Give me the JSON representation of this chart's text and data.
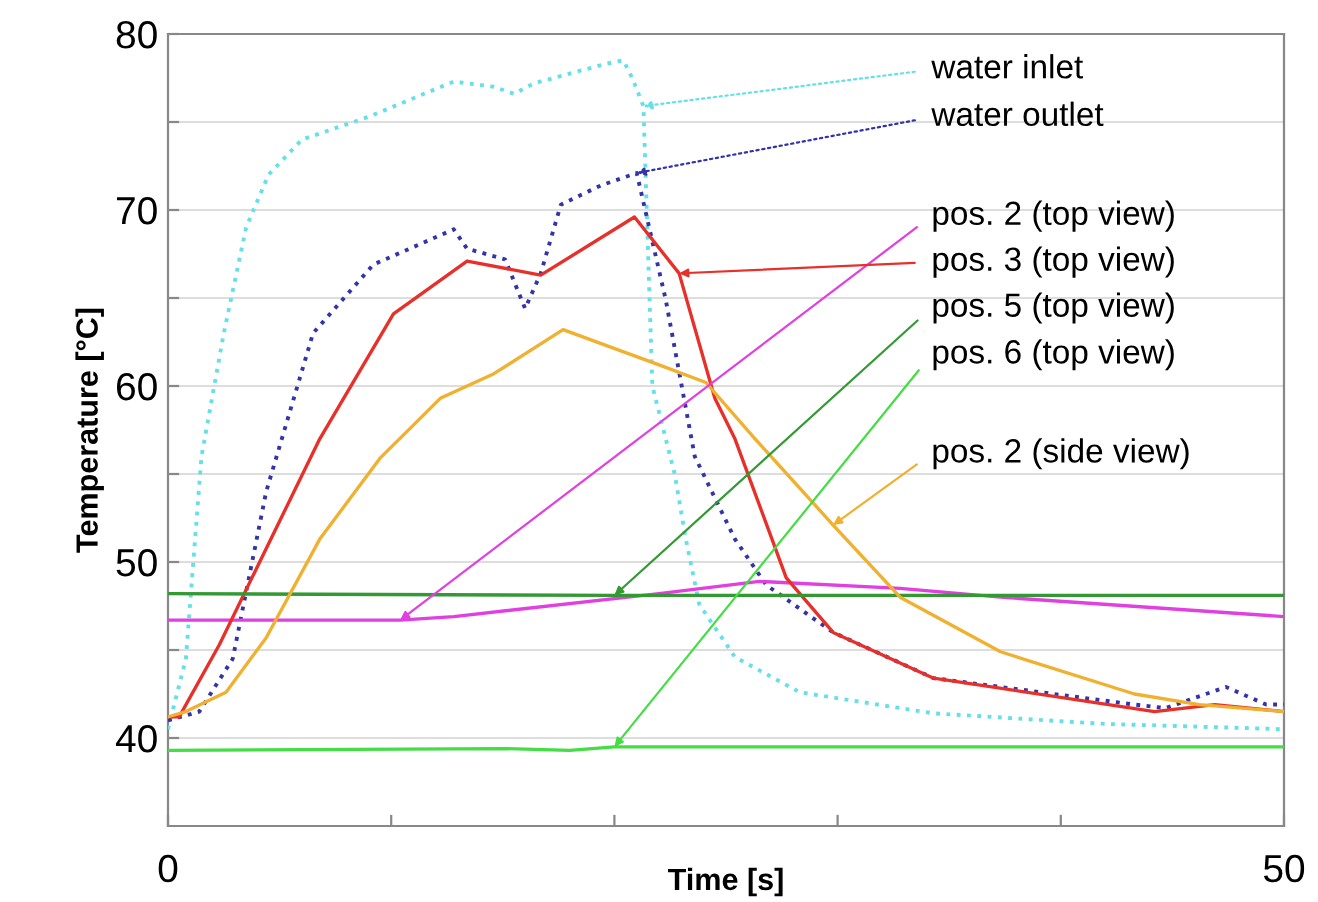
{
  "chart_data": {
    "type": "line",
    "xlabel": "Time [s]",
    "ylabel": "Temperature [°C]",
    "xlim": [
      0,
      50
    ],
    "ylim": [
      35,
      80
    ],
    "xticks": [
      0,
      {
        "value": 10,
        "label": null
      },
      {
        "value": 20,
        "label": null
      },
      {
        "value": 30,
        "label": null
      },
      {
        "value": 40,
        "label": null
      },
      50
    ],
    "yticks": [
      40,
      {
        "value": 45,
        "label": null
      },
      50,
      {
        "value": 55,
        "label": null
      },
      60,
      {
        "value": 65,
        "label": null
      },
      70,
      {
        "value": 75,
        "label": null
      },
      80
    ],
    "grid": "y",
    "legend": false,
    "marker": "none",
    "series": [
      {
        "color": "#66e0e8",
        "line_style": "dotted",
        "x": [
          0,
          0.8,
          1.5,
          2.5,
          3.5,
          4.5,
          6,
          9,
          12.8,
          14.6,
          15.5,
          16.4,
          19.6,
          20.4,
          20.8,
          21.3,
          21.7,
          22.7,
          23.2,
          23.8,
          25.4,
          28.3,
          34.3,
          42,
          50
        ],
        "values": [
          40.5,
          44.5,
          56,
          63,
          69,
          72,
          74,
          75.3,
          77.3,
          77,
          76.6,
          77.2,
          78.3,
          78.5,
          77.5,
          75.9,
          60,
          55,
          51.3,
          47.6,
          44.6,
          42.6,
          41.4,
          40.8,
          40.5
        ]
      },
      {
        "color": "#3333aa",
        "line_style": "dotted",
        "x": [
          0,
          1.4,
          2.9,
          4.4,
          6.5,
          9.2,
          12.8,
          13.4,
          15.1,
          16,
          16.7,
          17.6,
          19.4,
          21,
          22.3,
          23.6,
          25.4,
          26.8,
          29.8,
          34.3,
          43.3,
          44.7,
          47.4,
          49.2,
          50
        ],
        "values": [
          41,
          41.5,
          44.5,
          54,
          63,
          66.9,
          68.9,
          67.8,
          67.2,
          64.4,
          66.4,
          70.3,
          71.4,
          72.1,
          64.9,
          56,
          51.3,
          48.7,
          46,
          43.4,
          41.9,
          41.7,
          42.9,
          41.9,
          41.9
        ]
      },
      {
        "color": "#e040e0",
        "line_style": "solid",
        "x": [
          0,
          10.4,
          12.8,
          22,
          26.5,
          32.8,
          37.3,
          50
        ],
        "values": [
          46.7,
          46.7,
          46.9,
          48.2,
          48.9,
          48.5,
          48,
          46.9
        ]
      },
      {
        "color": "#e8302a",
        "line_style": "solid",
        "x": [
          0,
          0.5,
          2.3,
          6.8,
          10.1,
          13.4,
          16.7,
          20.9,
          22.9,
          24.5,
          25.4,
          27.7,
          29.8,
          34.3,
          44.2,
          46.9,
          50
        ],
        "values": [
          41.2,
          41.2,
          45.3,
          57,
          64.1,
          67.1,
          66.3,
          69.6,
          66.4,
          59.3,
          57,
          49.1,
          46,
          43.4,
          41.5,
          41.9,
          41.5
        ]
      },
      {
        "color": "#339933",
        "line_style": "solid",
        "x": [
          0,
          20,
          50
        ],
        "values": [
          48.2,
          48.1,
          48.1
        ]
      },
      {
        "color": "#44dd44",
        "line_style": "solid",
        "x": [
          0,
          15,
          18,
          20,
          50
        ],
        "values": [
          39.3,
          39.4,
          39.3,
          39.5,
          39.5
        ]
      },
      {
        "color": "#f0b030",
        "line_style": "solid",
        "x": [
          0,
          0.8,
          2.6,
          4.4,
          6.8,
          9.5,
          12.2,
          14.6,
          17.7,
          22,
          24.1,
          26.3,
          29.8,
          32.8,
          37.3,
          43.3,
          46.2,
          50
        ],
        "values": [
          41.2,
          41.5,
          42.6,
          45.7,
          51.3,
          55.9,
          59.3,
          60.7,
          63.2,
          61.2,
          60.2,
          57,
          52.1,
          48,
          44.9,
          42.5,
          41.9,
          41.5
        ]
      }
    ],
    "annotations": [
      {
        "text": "water inlet",
        "x": 21.3,
        "y": 75.9
      },
      {
        "text": "water outlet",
        "x": 21,
        "y": 72.1
      },
      {
        "text": "pos. 2 (top view)",
        "x": 10.4,
        "y": 46.7
      },
      {
        "text": "pos. 3 (top view)",
        "x": 22.9,
        "y": 66.4
      },
      {
        "text": "pos. 5 (top view)",
        "x": 20,
        "y": 48.1
      },
      {
        "text": "pos. 6 (top view)",
        "x": 20,
        "y": 39.5
      },
      {
        "text": "pos. 2 (side view)",
        "x": 29.8,
        "y": 52.1
      }
    ]
  }
}
